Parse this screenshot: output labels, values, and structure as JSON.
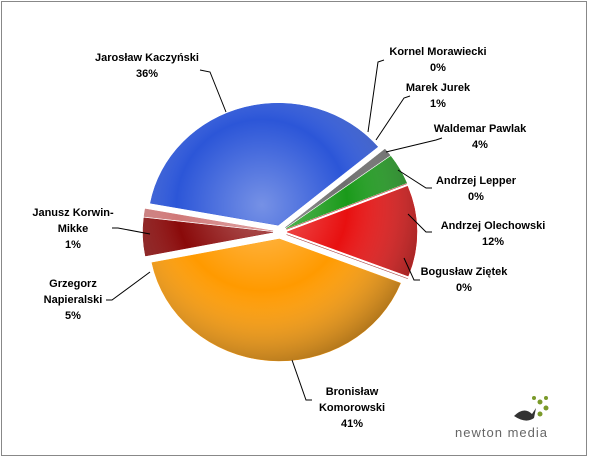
{
  "chart_data": {
    "type": "pie",
    "categories": [
      "Kornel Morawiecki",
      "Marek Jurek",
      "Waldemar Pawlak",
      "Andrzej Lepper",
      "Andrzej Olechowski",
      "Bogusław Ziętek",
      "Bronisław Komorowski",
      "Grzegorz Napieralski",
      "Janusz Korwin-Mikke",
      "Jarosław Kaczyński"
    ],
    "values": [
      0,
      1,
      4,
      0,
      12,
      0,
      41,
      5,
      1,
      36
    ],
    "value_labels": [
      "0%",
      "1%",
      "4%",
      "0%",
      "12%",
      "0%",
      "41%",
      "5%",
      "1%",
      "36%"
    ],
    "colors": [
      "#9a9a9a",
      "#6e6e6e",
      "#1a9a1a",
      "#c04040",
      "#e81010",
      "#b05050",
      "#ff9a00",
      "#8a0a0a",
      "#d07878",
      "#2c56d8"
    ]
  },
  "logo": "newton media"
}
